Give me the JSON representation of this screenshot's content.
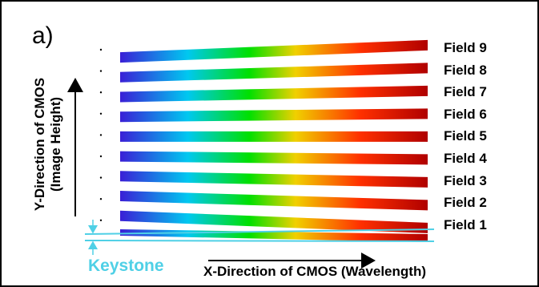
{
  "panel_label": "a)",
  "y_axis_label": {
    "line1": "Y-Direction of CMOS",
    "line2": "(Image Height)"
  },
  "x_axis_label": "X-Direction of CMOS (Wavelength)",
  "keystone_label": "Keystone",
  "fields": [
    {
      "label": "Field 9"
    },
    {
      "label": "Field 8"
    },
    {
      "label": "Field 7"
    },
    {
      "label": "Field 6"
    },
    {
      "label": "Field 5"
    },
    {
      "label": "Field 4"
    },
    {
      "label": "Field 3"
    },
    {
      "label": "Field 2"
    },
    {
      "label": "Field 1"
    }
  ],
  "colors": {
    "spectrum": [
      "#3a1fd6",
      "#00c8f0",
      "#00e000",
      "#f0d000",
      "#ff3000",
      "#b00000"
    ],
    "keystone": "#4fd0e6",
    "axis": "#000000"
  }
}
